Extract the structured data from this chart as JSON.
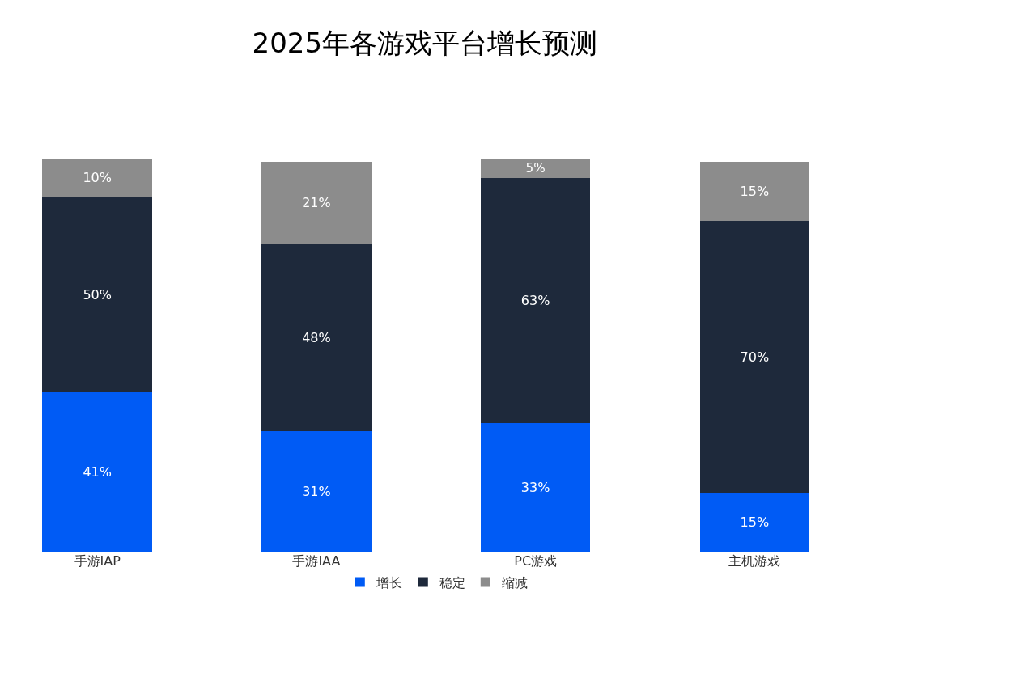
{
  "chart_data": {
    "type": "bar",
    "title": "2025年各游戏平台增长预测",
    "categories": [
      "手游IAP",
      "手游IAA",
      "PC游戏",
      "主机游戏"
    ],
    "stacked": true,
    "legend": "bottom",
    "grid": false,
    "series": [
      {
        "name": "增长",
        "color": "#005bf5",
        "values": [
          41,
          31,
          33,
          15
        ],
        "value_labels": [
          "41%",
          "31%",
          "33%",
          "15%"
        ]
      },
      {
        "name": "稳定",
        "color": "#1e293b",
        "values": [
          50,
          48,
          63,
          70
        ],
        "value_labels": [
          "50%",
          "48%",
          "63%",
          "70%"
        ]
      },
      {
        "name": "缩减",
        "color": "#8c8c8c",
        "values": [
          10,
          21,
          5,
          15
        ],
        "value_labels": [
          "10%",
          "21%",
          "5%",
          "15%"
        ]
      }
    ]
  }
}
